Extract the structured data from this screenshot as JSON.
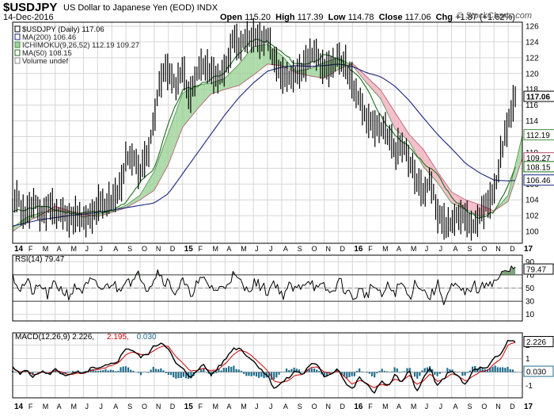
{
  "header": {
    "symbol": "$USDJPY",
    "description": "US Dollar to Japanese Yen (EOD)  INDX",
    "date": "14-Dec-2016",
    "open_label": "Open",
    "open": "115.20",
    "high_label": "High",
    "high": "117.39",
    "low_label": "Low",
    "low": "114.78",
    "close_label": "Close",
    "close": "117.06",
    "chg_label": "Chg",
    "chg": "+1.87 (+1.62%)",
    "credit": "© StockCharts.com"
  },
  "colors": {
    "price": "#000000",
    "ma200": "#1a237e",
    "ma50": "#1b6e1b",
    "cloud_up": "#9fd49a",
    "cloud_down": "#f2b3bf",
    "kijun": "#8e1a3a",
    "macd_line": "#000000",
    "signal": "#cc0000",
    "histogram": "#1f6e8c",
    "grid": "#d6d6d6",
    "label_box": "#000000"
  },
  "chart_data": [
    {
      "type": "line",
      "id": "price",
      "title": "$USDJPY (Daily) 117.06",
      "legend": [
        {
          "text": "$USDJPY (Daily) 117.06",
          "icon": "price-icon"
        },
        {
          "text": "MA(200) 106.46",
          "icon": "ma200-icon"
        },
        {
          "text": "ICHIMOKU(9,26,52) 112.19 109.27",
          "icon": "ichimoku-icon"
        },
        {
          "text": "MA(50) 108.15",
          "icon": "ma50-icon"
        },
        {
          "text": "Volume undef",
          "icon": "volume-icon"
        }
      ],
      "ylim": [
        98.5,
        126.5
      ],
      "yticks": [
        100,
        102,
        104,
        106,
        108,
        110,
        112,
        114,
        116,
        118,
        120,
        122,
        124,
        126
      ],
      "x_months": [
        "14",
        "F",
        "M",
        "A",
        "M",
        "J",
        "J",
        "A",
        "S",
        "O",
        "N",
        "D",
        "15",
        "F",
        "M",
        "A",
        "M",
        "J",
        "J",
        "A",
        "S",
        "O",
        "N",
        "D",
        "16",
        "F",
        "M",
        "A",
        "M",
        "J",
        "J",
        "A",
        "S",
        "O",
        "N",
        "D",
        "17"
      ],
      "x_range": [
        0,
        36
      ],
      "series": [
        {
          "name": "Price",
          "color": "#000000",
          "t": [
            0,
            0.3,
            0.6,
            1,
            1.5,
            2,
            2.5,
            3,
            3.5,
            4,
            4.5,
            5,
            5.5,
            6,
            6.5,
            7,
            7.5,
            8,
            8.5,
            9,
            9.5,
            10,
            10.3,
            10.6,
            11,
            11.5,
            12,
            12.5,
            13,
            13.5,
            14,
            14.5,
            15,
            15.5,
            16,
            16.5,
            17,
            17.5,
            18,
            18.5,
            19,
            19.5,
            20,
            20.5,
            21,
            21.5,
            22,
            22.5,
            23,
            23.5,
            24,
            24.3,
            24.6,
            25,
            25.5,
            26,
            26.5,
            27,
            27.5,
            28,
            28.5,
            29,
            29.5,
            30,
            30.5,
            31,
            31.5,
            32,
            32.5,
            33,
            33.5,
            34,
            34.5,
            35,
            35.5
          ],
          "v": [
            103.3,
            104.8,
            102.4,
            102.2,
            103.7,
            101.9,
            103.1,
            102.6,
            102.2,
            101.6,
            102.0,
            101.6,
            102.2,
            103.1,
            103.6,
            104.0,
            105.1,
            109.1,
            109.0,
            107.6,
            109.2,
            114.5,
            118.5,
            120.2,
            120.2,
            118.2,
            120.4,
            117.0,
            119.7,
            121.4,
            120.2,
            119.7,
            120.0,
            124.1,
            123.6,
            124.3,
            124.6,
            123.9,
            124.3,
            121.8,
            120.0,
            119.9,
            120.2,
            120.8,
            123.0,
            122.6,
            120.3,
            121.0,
            122.1,
            121.0,
            118.9,
            117.0,
            116.3,
            114.0,
            113.3,
            112.8,
            112.5,
            109.7,
            111.0,
            109.3,
            106.9,
            104.5,
            106.8,
            102.5,
            100.7,
            101.5,
            101.8,
            102.1,
            101.0,
            102.0,
            103.5,
            104.9,
            110.0,
            114.2,
            117.06
          ]
        },
        {
          "name": "MA(200)",
          "value": "106.46",
          "color": "#1a237e",
          "t": [
            0,
            2,
            4,
            6,
            8,
            10,
            11,
            12,
            13,
            14,
            15,
            16,
            17,
            18,
            19,
            20,
            21,
            22,
            23,
            24,
            25,
            26,
            27,
            28,
            29,
            30,
            31,
            32,
            33,
            34,
            35,
            35.5
          ],
          "v": [
            100.7,
            101.5,
            102.0,
            102.4,
            103.0,
            103.6,
            104.8,
            107.3,
            109.8,
            112.3,
            114.8,
            117.0,
            118.8,
            120.3,
            120.8,
            121.0,
            120.9,
            121.0,
            121.2,
            120.9,
            120.1,
            119.6,
            118.4,
            116.6,
            114.4,
            112.3,
            110.5,
            108.6,
            107.4,
            106.5,
            106.4,
            106.46
          ]
        },
        {
          "name": "MA(50)",
          "value": "108.15",
          "color": "#1b6e1b",
          "t": [
            0,
            2,
            4,
            6,
            7,
            8,
            9,
            10,
            11,
            12,
            13,
            14,
            15,
            16,
            17,
            18,
            19,
            20,
            21,
            22,
            23,
            24,
            25,
            26,
            27,
            28,
            29,
            30,
            31,
            32,
            33,
            34,
            34.5,
            35,
            35.5
          ],
          "v": [
            102.5,
            103.2,
            102.3,
            102.5,
            102.6,
            103.6,
            106.2,
            107.9,
            113.8,
            117.9,
            118.4,
            119.3,
            120.2,
            122.6,
            124.3,
            124.0,
            122.7,
            121.2,
            121.3,
            122.3,
            121.9,
            120.4,
            118.3,
            114.6,
            112.1,
            110.7,
            108.7,
            107.2,
            104.3,
            102.8,
            101.6,
            102.5,
            104.0,
            106.0,
            108.15
          ]
        }
      ],
      "ichimoku": {
        "name": "ICHIMOKU(9,26,52)",
        "values": "112.19 109.27",
        "t": [
          0,
          1,
          2,
          3,
          4,
          5,
          6,
          7,
          8,
          9,
          10,
          11,
          12,
          13,
          14,
          15,
          16,
          17,
          18,
          19,
          20,
          21,
          22,
          23,
          24,
          25,
          26,
          27,
          28,
          29,
          30,
          31,
          32,
          33,
          34,
          35,
          36
        ],
        "span_a": [
          100.5,
          101.8,
          102.4,
          102.6,
          102.5,
          101.8,
          102.2,
          102.6,
          103.3,
          104.6,
          107.6,
          112.5,
          117.5,
          118.5,
          118.8,
          119.4,
          121.2,
          123.4,
          123.7,
          122.3,
          120.3,
          120.6,
          121.4,
          122.0,
          121.0,
          118.8,
          116.8,
          113.0,
          111.4,
          108.2,
          106.2,
          103.6,
          102.8,
          101.9,
          102.5,
          104.6,
          112.19
        ],
        "span_b": [
          100.0,
          101.2,
          102.1,
          103.2,
          102.6,
          102.2,
          101.9,
          102.4,
          103.0,
          104.0,
          105.2,
          108.5,
          113.2,
          115.4,
          117.4,
          118.0,
          118.5,
          119.8,
          121.2,
          121.0,
          120.1,
          119.7,
          119.4,
          120.5,
          121.3,
          119.6,
          117.9,
          115.1,
          112.3,
          110.4,
          107.6,
          105.0,
          104.0,
          103.4,
          102.6,
          103.8,
          109.27
        ]
      },
      "right_labels": [
        {
          "text": "117.06",
          "bold": true
        },
        {
          "text": "112.19"
        },
        {
          "text": "109.27"
        },
        {
          "text": "108.15"
        },
        {
          "text": "106.46"
        }
      ]
    },
    {
      "type": "line",
      "id": "rsi",
      "title": "RSI(14) 79.47",
      "ylim": [
        0,
        100
      ],
      "yticks": [
        10,
        30,
        50,
        70,
        90
      ],
      "overbought": 70,
      "oversold": 30,
      "midline": 50,
      "series": [
        {
          "name": "RSI(14)",
          "value": "79.47",
          "color": "#000000",
          "t": [
            0,
            0.5,
            1,
            1.5,
            2,
            2.5,
            3,
            3.5,
            4,
            4.5,
            5,
            5.5,
            6,
            6.5,
            7,
            7.5,
            8,
            8.5,
            9,
            9.5,
            10,
            10.3,
            10.6,
            11,
            11.5,
            12,
            12.5,
            13,
            13.5,
            14,
            14.5,
            15,
            15.5,
            16,
            16.5,
            17,
            17.5,
            18,
            18.5,
            19,
            19.5,
            20,
            20.5,
            21,
            21.5,
            22,
            22.5,
            23,
            23.5,
            24,
            24.5,
            25,
            25.5,
            26,
            26.5,
            27,
            27.5,
            28,
            28.5,
            29,
            29.5,
            30,
            30.5,
            31,
            31.5,
            32,
            32.5,
            33,
            33.5,
            34,
            34.5,
            35,
            35.5
          ],
          "v": [
            72,
            48,
            60,
            42,
            55,
            38,
            58,
            46,
            40,
            52,
            46,
            60,
            52,
            48,
            60,
            46,
            68,
            58,
            72,
            50,
            66,
            78,
            64,
            58,
            44,
            60,
            40,
            56,
            62,
            52,
            46,
            54,
            70,
            60,
            46,
            58,
            54,
            44,
            62,
            38,
            52,
            46,
            58,
            64,
            46,
            52,
            40,
            62,
            48,
            34,
            46,
            40,
            56,
            36,
            52,
            44,
            58,
            34,
            62,
            46,
            36,
            56,
            30,
            52,
            48,
            40,
            56,
            44,
            62,
            58,
            70,
            74,
            82,
            76,
            79.47
          ]
        }
      ],
      "right_labels": [
        {
          "text": "79.47"
        }
      ]
    },
    {
      "type": "line",
      "id": "macd",
      "title": "MACD(12,26,9) 2.226, 2.195, 0.030",
      "legend": [
        {
          "text": "MACD(12,26,9) 2.226,",
          "color": "#000000"
        },
        {
          "text": "2.195,",
          "color": "#cc0000"
        },
        {
          "text": "0.030",
          "color": "#1f6e8c"
        }
      ],
      "ylim": [
        -1.9,
        2.9
      ],
      "yticks": [
        -1,
        0,
        1,
        2
      ],
      "series": [
        {
          "name": "MACD",
          "value": "2.226",
          "color": "#000000",
          "t": [
            0,
            0.5,
            1,
            1.5,
            2,
            2.5,
            3,
            3.5,
            4,
            4.5,
            5,
            5.5,
            6,
            6.5,
            7,
            7.5,
            8,
            8.5,
            9,
            9.5,
            10,
            10.5,
            11,
            11.5,
            12,
            12.5,
            13,
            13.5,
            14,
            14.5,
            15,
            15.5,
            16,
            16.5,
            17,
            17.5,
            18,
            18.5,
            19,
            19.5,
            20,
            20.5,
            21,
            21.5,
            22,
            22.5,
            23,
            23.5,
            24,
            24.5,
            25,
            25.5,
            26,
            26.5,
            27,
            27.5,
            28,
            28.5,
            29,
            29.5,
            30,
            30.5,
            31,
            31.5,
            32,
            32.5,
            33,
            33.5,
            34,
            34.5,
            35,
            35.5
          ],
          "v": [
            0.4,
            -0.2,
            0.2,
            -0.4,
            0.1,
            -0.2,
            0.2,
            -0.1,
            -0.3,
            0.0,
            -0.2,
            0.3,
            0.2,
            0.4,
            0.6,
            0.9,
            1.8,
            1.6,
            1.1,
            1.3,
            1.9,
            2.2,
            1.8,
            0.6,
            0.3,
            -0.5,
            0.2,
            0.5,
            -0.2,
            0.3,
            0.9,
            1.7,
            1.8,
            1.3,
            0.8,
            0.3,
            -0.3,
            -1.2,
            -0.8,
            -0.4,
            0.1,
            -0.2,
            0.6,
            0.5,
            -0.3,
            -0.1,
            0.3,
            -0.8,
            -1.3,
            -0.4,
            -0.9,
            -1.6,
            -0.6,
            -1.1,
            -0.2,
            -0.8,
            0.1,
            -1.4,
            -0.5,
            0.3,
            -1.1,
            -0.4,
            0.2,
            -0.4,
            -1.0,
            0.1,
            0.3,
            0.2,
            1.0,
            1.3,
            2.4,
            2.226
          ]
        },
        {
          "name": "Signal",
          "value": "2.195",
          "color": "#cc0000",
          "t": [
            0,
            0.5,
            1,
            1.5,
            2,
            2.5,
            3,
            3.5,
            4,
            4.5,
            5,
            5.5,
            6,
            6.5,
            7,
            7.5,
            8,
            8.5,
            9,
            9.5,
            10,
            10.5,
            11,
            11.5,
            12,
            12.5,
            13,
            13.5,
            14,
            14.5,
            15,
            15.5,
            16,
            16.5,
            17,
            17.5,
            18,
            18.5,
            19,
            19.5,
            20,
            20.5,
            21,
            21.5,
            22,
            22.5,
            23,
            23.5,
            24,
            24.5,
            25,
            25.5,
            26,
            26.5,
            27,
            27.5,
            28,
            28.5,
            29,
            29.5,
            30,
            30.5,
            31,
            31.5,
            32,
            32.5,
            33,
            33.5,
            34,
            34.5,
            35,
            35.5
          ],
          "v": [
            0.3,
            0.0,
            0.1,
            -0.2,
            0.0,
            -0.1,
            0.1,
            0.0,
            -0.2,
            -0.1,
            -0.1,
            0.1,
            0.2,
            0.3,
            0.5,
            0.7,
            1.3,
            1.5,
            1.3,
            1.3,
            1.6,
            1.9,
            1.9,
            1.2,
            0.7,
            0.1,
            0.1,
            0.3,
            0.1,
            0.2,
            0.6,
            1.2,
            1.6,
            1.5,
            1.1,
            0.6,
            0.1,
            -0.7,
            -0.8,
            -0.6,
            -0.2,
            -0.2,
            0.3,
            0.4,
            0.0,
            -0.1,
            0.1,
            -0.4,
            -0.9,
            -0.6,
            -0.8,
            -1.2,
            -0.9,
            -1.0,
            -0.5,
            -0.7,
            -0.2,
            -0.9,
            -0.7,
            -0.1,
            -0.7,
            -0.5,
            -0.1,
            -0.3,
            -0.7,
            -0.3,
            0.0,
            0.1,
            0.6,
            1.0,
            2.0,
            2.195
          ]
        }
      ],
      "histogram": {
        "name": "Histogram",
        "value": "0.030",
        "color": "#1f6e8c"
      },
      "right_labels": [
        {
          "text": "2.226"
        },
        {
          "text": "0.030"
        }
      ]
    }
  ]
}
